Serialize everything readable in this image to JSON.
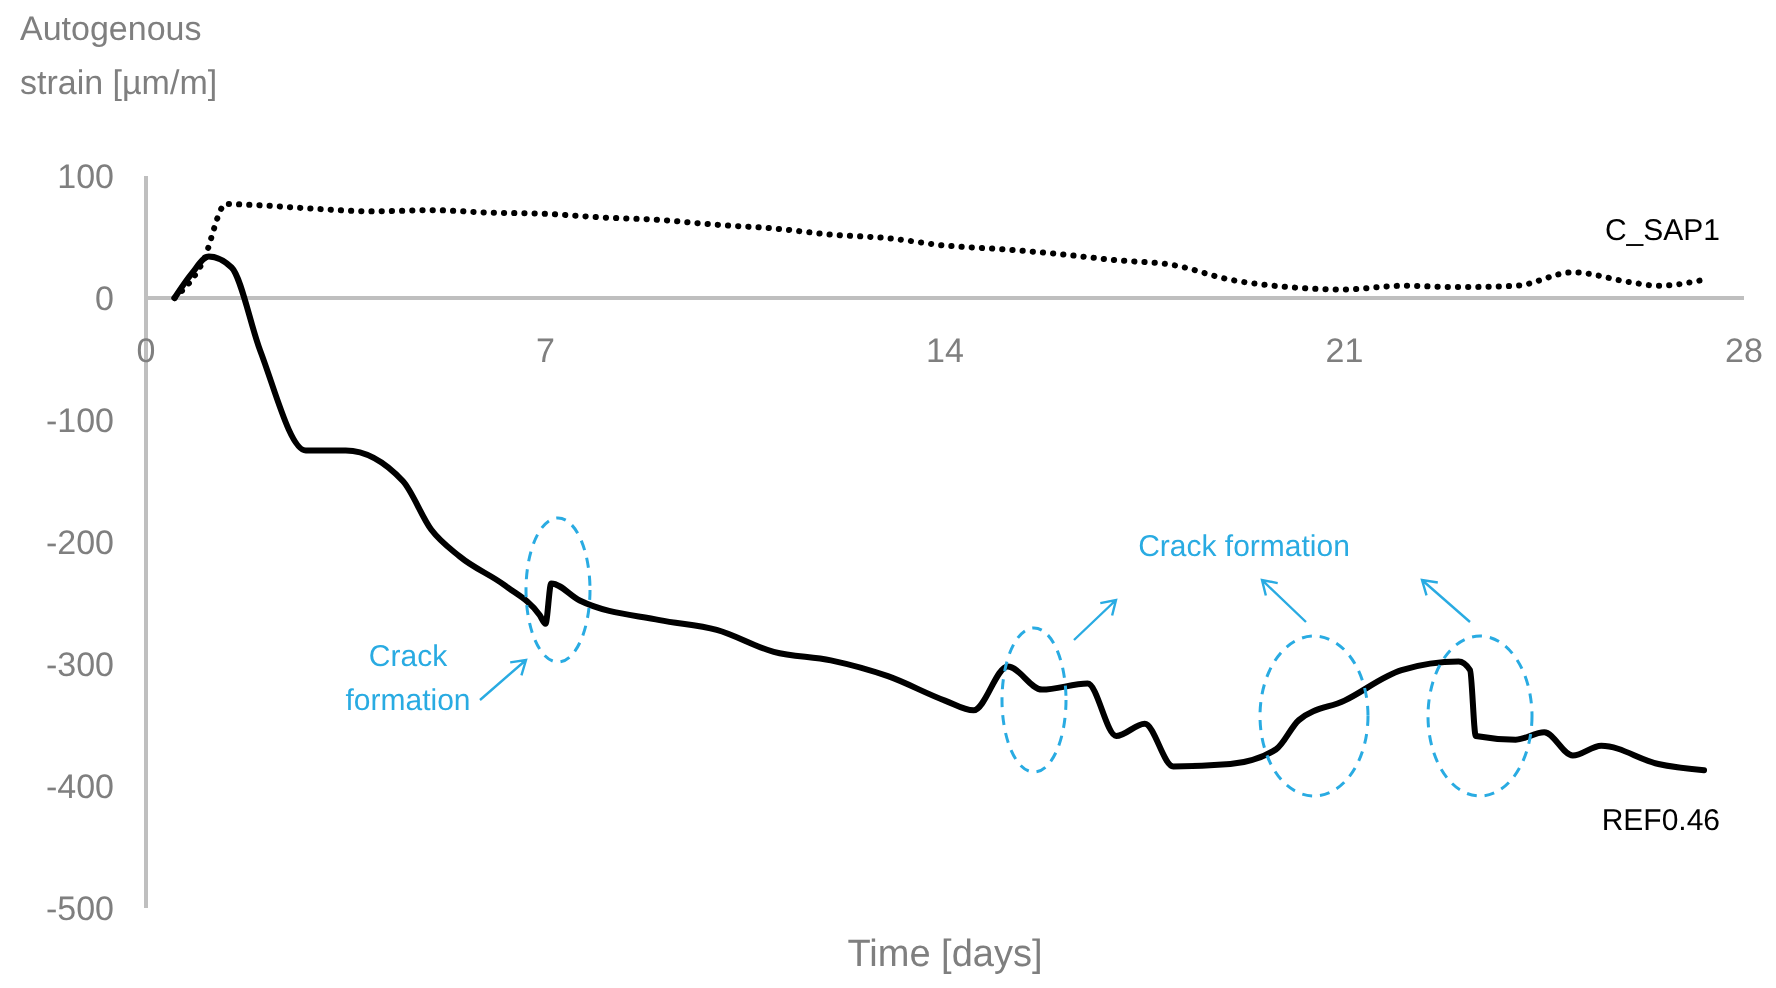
{
  "chart_data": {
    "type": "line",
    "ylabel": "Autogenous strain [µm/m]",
    "xlabel": "Time [days]",
    "xlim": [
      0,
      28
    ],
    "ylim": [
      -500,
      100
    ],
    "xticks": [
      0,
      7,
      14,
      21,
      28
    ],
    "yticks": [
      -500,
      -400,
      -300,
      -200,
      -100,
      0,
      100
    ],
    "grid": false,
    "annotations": [
      "Crack formation",
      "Crack formation"
    ],
    "series": [
      {
        "name": "C_SAP1",
        "color": "#000000",
        "line_style": "dotted",
        "x": [
          0.5,
          1.0,
          1.4,
          2,
          3,
          4,
          5,
          6,
          7,
          8,
          9,
          10,
          11,
          12,
          13,
          14,
          15,
          16,
          17,
          18,
          19,
          20,
          21,
          22,
          23,
          24,
          25,
          26,
          26.5,
          27.3
        ],
        "values": [
          0,
          30,
          77,
          76,
          73,
          71,
          72,
          70,
          69,
          66,
          64,
          60,
          57,
          52,
          49,
          43,
          40,
          36,
          31,
          27,
          15,
          9,
          7,
          10,
          9,
          10,
          21,
          13,
          10,
          15
        ]
      },
      {
        "name": "REF0.46",
        "color": "#000000",
        "line_style": "solid",
        "x": [
          0.5,
          0.8,
          1.1,
          1.5,
          2,
          2.8,
          3.5,
          4.5,
          5,
          5.5,
          6.3,
          6.9,
          7.0,
          7.1,
          7.6,
          9,
          10,
          11,
          12,
          13,
          14,
          14.5,
          15.1,
          15.7,
          16.5,
          17,
          17.5,
          18,
          19,
          19.8,
          20.2,
          21,
          22,
          23,
          23.2,
          23.3,
          24,
          24.5,
          25,
          25.5,
          26.5,
          27.3
        ],
        "values": [
          0,
          20,
          34,
          25,
          -43,
          -125,
          -125,
          -150,
          -190,
          -212,
          -236,
          -260,
          -267,
          -234,
          -248,
          -264,
          -272,
          -290,
          -297,
          -310,
          -330,
          -338,
          -302,
          -321,
          -316,
          -359,
          -349,
          -384,
          -382,
          -370,
          -346,
          -330,
          -305,
          -298,
          -305,
          -359,
          -362,
          -356,
          -375,
          -367,
          -382,
          -387
        ]
      }
    ]
  }
}
